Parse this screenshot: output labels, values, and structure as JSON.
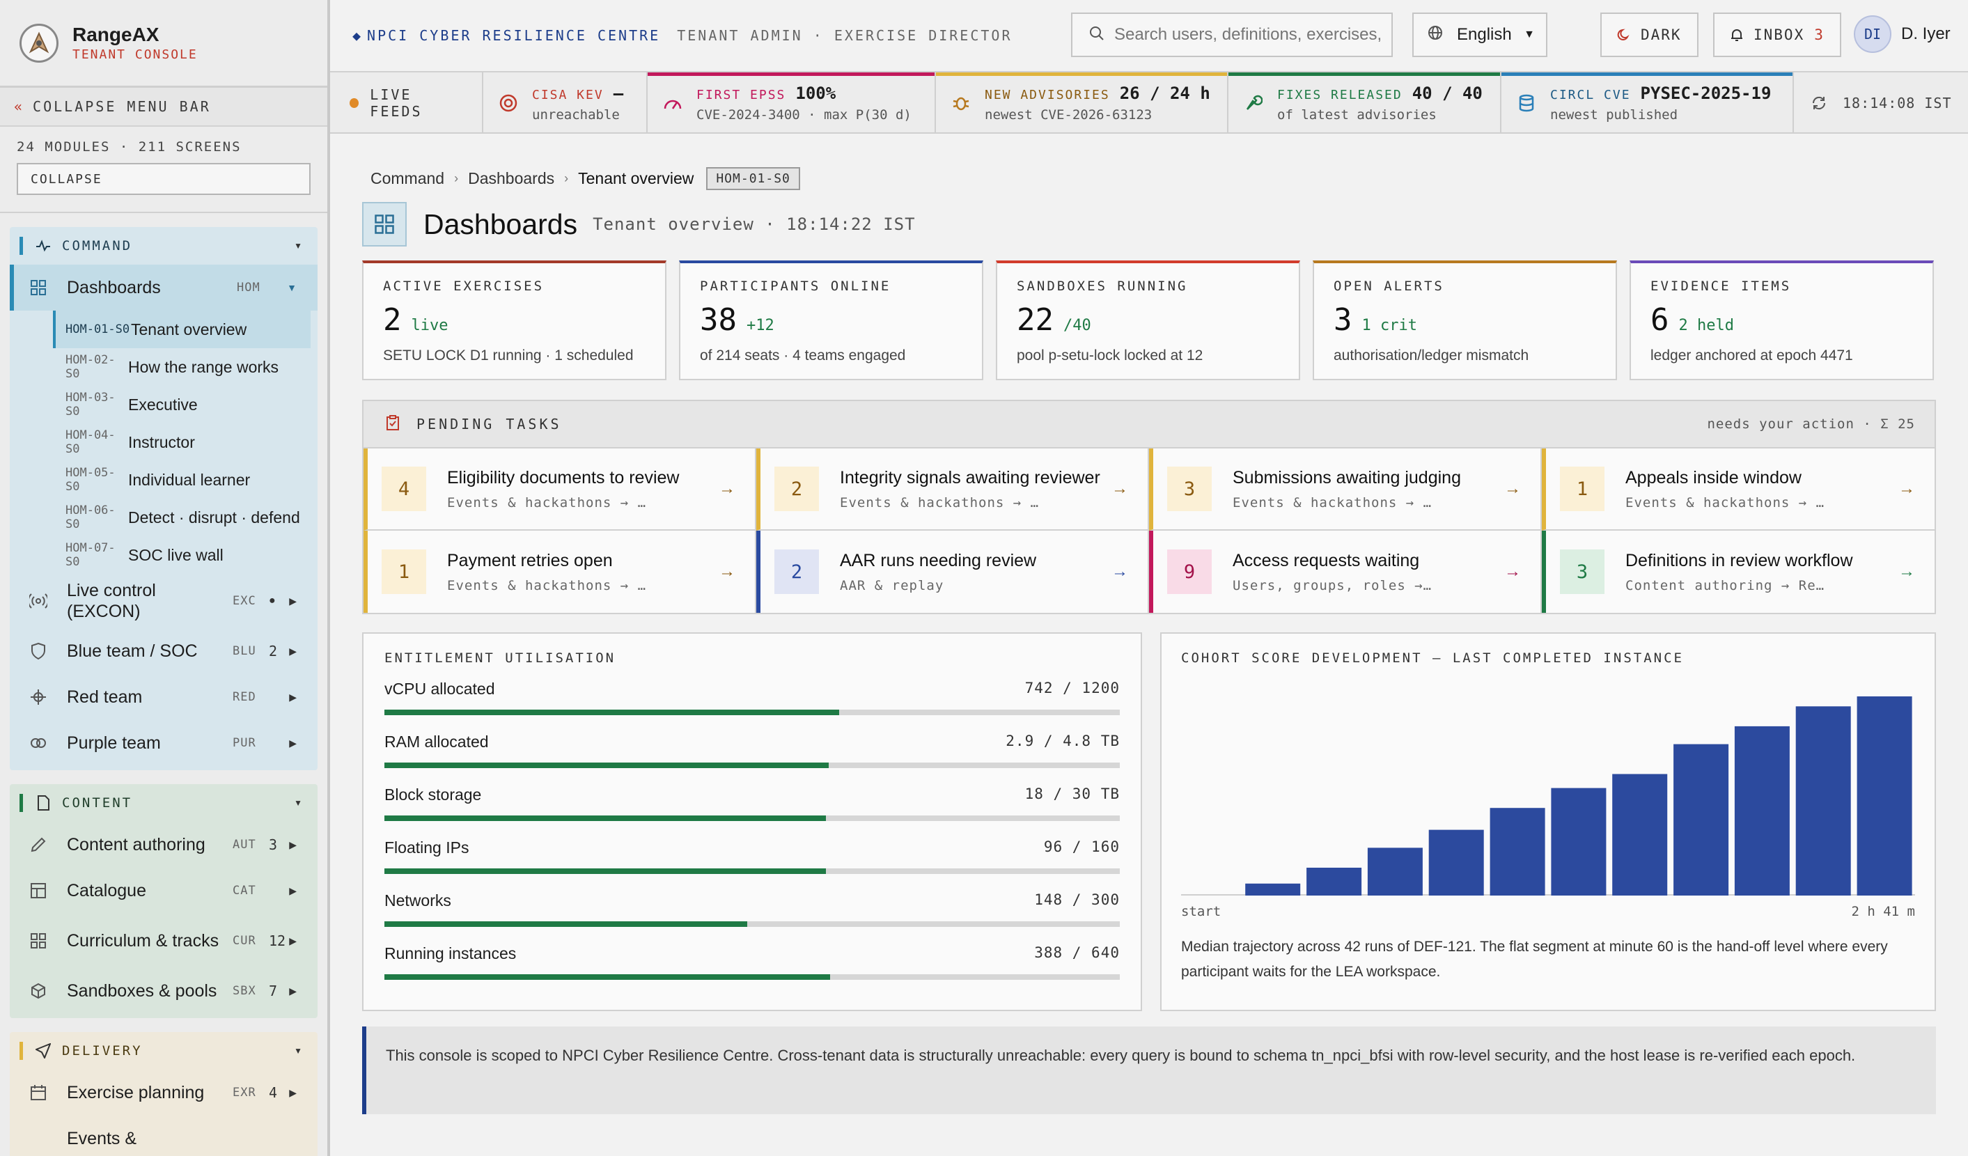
{
  "brand": {
    "name": "RangeAX",
    "subtitle": "TENANT CONSOLE"
  },
  "sidebar": {
    "collapse_menu": "COLLAPSE MENU BAR",
    "module_count": "24 MODULES · 211 SCREENS",
    "collapse_button": "COLLAPSE",
    "groups": {
      "command": {
        "label": "COMMAND",
        "dashboards": {
          "label": "Dashboards",
          "code": "HOM"
        },
        "subs": [
          {
            "code": "HOM-01-S0",
            "label": "Tenant overview"
          },
          {
            "code": "HOM-02-S0",
            "label": "How the range works"
          },
          {
            "code": "HOM-03-S0",
            "label": "Executive"
          },
          {
            "code": "HOM-04-S0",
            "label": "Instructor"
          },
          {
            "code": "HOM-05-S0",
            "label": "Individual learner"
          },
          {
            "code": "HOM-06-S0",
            "label": "Detect · disrupt · defend"
          },
          {
            "code": "HOM-07-S0",
            "label": "SOC live wall"
          }
        ],
        "items": [
          {
            "label": "Live control (EXCON)",
            "code": "EXC",
            "count": "●"
          },
          {
            "label": "Blue team / SOC",
            "code": "BLU",
            "count": "2"
          },
          {
            "label": "Red team",
            "code": "RED",
            "count": ""
          },
          {
            "label": "Purple team",
            "code": "PUR",
            "count": ""
          }
        ]
      },
      "content": {
        "label": "CONTENT",
        "items": [
          {
            "label": "Content authoring",
            "code": "AUT",
            "count": "3"
          },
          {
            "label": "Catalogue",
            "code": "CAT",
            "count": ""
          },
          {
            "label": "Curriculum & tracks",
            "code": "CUR",
            "count": "12"
          },
          {
            "label": "Sandboxes & pools",
            "code": "SBX",
            "count": "7"
          }
        ]
      },
      "delivery": {
        "label": "DELIVERY",
        "items": [
          {
            "label": "Exercise planning",
            "code": "EXR",
            "count": "4"
          },
          {
            "label": "Events &",
            "code": "",
            "count": ""
          }
        ]
      }
    }
  },
  "topbar": {
    "org": "NPCI CYBER RESILIENCE CENTRE",
    "role": "TENANT ADMIN · EXERCISE DIRECTOR",
    "search_placeholder": "Search users, definitions, exercises, evidence",
    "language": "English",
    "dark_label": "DARK",
    "inbox_label": "INBOX",
    "inbox_count": "3",
    "user_initials": "DI",
    "user_name": "D. Iyer"
  },
  "feeds": {
    "live_label": "LIVE FEEDS",
    "items": [
      {
        "title": "CISA KEV",
        "value": "—",
        "sub": "unreachable",
        "color": "#c0392b"
      },
      {
        "title": "FIRST EPSS",
        "value": "100%",
        "sub": "CVE-2024-3400 · max P(30 d)",
        "color": "#c2185b"
      },
      {
        "title": "NEW ADVISORIES",
        "value": "26 / 24 h",
        "sub": "newest CVE-2026-63123",
        "color": "#b7791f"
      },
      {
        "title": "FIXES RELEASED",
        "value": "40 / 40",
        "sub": "of latest advisories",
        "color": "#1f7a45"
      },
      {
        "title": "CIRCL CVE",
        "value": "PYSEC-2025-19",
        "sub": "newest published",
        "color": "#2a7fb8"
      }
    ],
    "clock": "18:14:08 IST"
  },
  "page": {
    "breadcrumb": [
      "Command",
      "Dashboards",
      "Tenant overview"
    ],
    "screen_tag": "HOM-01-S0",
    "title": "Dashboards",
    "subtitle": "Tenant overview · 18:14:22 IST"
  },
  "stats": [
    {
      "label": "ACTIVE EXERCISES",
      "value": "2",
      "delta": "live",
      "foot": "SETU LOCK D1 running · 1 scheduled",
      "color": "#a33a2a"
    },
    {
      "label": "PARTICIPANTS ONLINE",
      "value": "38",
      "delta": "+12",
      "foot": "of 214 seats · 4 teams engaged",
      "color": "#2a4aa0"
    },
    {
      "label": "SANDBOXES RUNNING",
      "value": "22",
      "delta": "/40",
      "foot": "pool p-setu-lock locked at 12",
      "color": "#d23c2c"
    },
    {
      "label": "OPEN ALERTS",
      "value": "3",
      "delta": "1 crit",
      "foot": "authorisation/ledger mismatch",
      "color": "#b7791f"
    },
    {
      "label": "EVIDENCE ITEMS",
      "value": "6",
      "delta": "2 held",
      "foot": "ledger anchored at epoch 4471",
      "color": "#6a4bb8"
    }
  ],
  "tasks": {
    "title": "PENDING TASKS",
    "summary": "needs your action · Σ 25",
    "items": [
      {
        "n": "4",
        "name": "Eligibility documents to review",
        "path": "Events & hackathons → Eligibility",
        "color": "#e0b43c",
        "bg": "#fbf0d6",
        "fg": "#8a5a10"
      },
      {
        "n": "2",
        "name": "Integrity signals awaiting reviewer",
        "path": "Events & hackathons → Integrity",
        "color": "#e0b43c",
        "bg": "#fbf0d6",
        "fg": "#8a5a10"
      },
      {
        "n": "3",
        "name": "Submissions awaiting judging",
        "path": "Events & hackathons → Judging",
        "color": "#e0b43c",
        "bg": "#fbf0d6",
        "fg": "#8a5a10"
      },
      {
        "n": "1",
        "name": "Appeals inside window",
        "path": "Events & hackathons → Results & appeals",
        "color": "#e0b43c",
        "bg": "#fbf0d6",
        "fg": "#8a5a10"
      },
      {
        "n": "1",
        "name": "Payment retries open",
        "path": "Events & hackathons → Fees & payments",
        "color": "#e0b43c",
        "bg": "#fbf0d6",
        "fg": "#8a5a10"
      },
      {
        "n": "2",
        "name": "AAR runs needing review",
        "path": "AAR & replay",
        "color": "#2a4aa0",
        "bg": "#e0e4f4",
        "fg": "#2a4aa0"
      },
      {
        "n": "9",
        "name": "Access requests waiting",
        "path": "Users, groups, roles → Users",
        "color": "#c2185b",
        "bg": "#f9dbe7",
        "fg": "#a3124a"
      },
      {
        "n": "3",
        "name": "Definitions in review workflow",
        "path": "Content authoring → Review workflow",
        "color": "#1f7a45",
        "bg": "#dcefe2",
        "fg": "#1f7a45"
      }
    ]
  },
  "entitlement": {
    "title": "ENTITLEMENT UTILISATION",
    "rows": [
      {
        "label": "vCPU allocated",
        "value": "742 / 1200",
        "pct": 61.8
      },
      {
        "label": "RAM allocated",
        "value": "2.9 / 4.8 TB",
        "pct": 60.4
      },
      {
        "label": "Block storage",
        "value": "18 / 30 TB",
        "pct": 60
      },
      {
        "label": "Floating IPs",
        "value": "96 / 160",
        "pct": 60
      },
      {
        "label": "Networks",
        "value": "148 / 300",
        "pct": 49.3
      },
      {
        "label": "Running instances",
        "value": "388 / 640",
        "pct": 60.6
      }
    ]
  },
  "cohort": {
    "title": "COHORT SCORE DEVELOPMENT — LAST COMPLETED INSTANCE",
    "x_start": "start",
    "x_end": "2 h 41 m",
    "caption": "Median trajectory across 42 runs of DEF-121. The flat segment at minute 60 is the hand-off level where every participant waits for the LEA workspace."
  },
  "chart_data": {
    "type": "bar",
    "title": "COHORT SCORE DEVELOPMENT — LAST COMPLETED INSTANCE",
    "xlabel": "",
    "ylabel": "",
    "x_ticks": [
      "start",
      "2 h 41 m"
    ],
    "values": [
      0,
      6,
      14,
      24,
      33,
      44,
      54,
      61,
      76,
      85,
      95,
      100
    ],
    "color": "#2c4a9e",
    "grid": false
  },
  "note": "This console is scoped to NPCI Cyber Resilience Centre. Cross-tenant data is structurally unreachable: every query is bound to schema tn_npci_bfsi with row-level security, and the host lease is re-verified each epoch."
}
